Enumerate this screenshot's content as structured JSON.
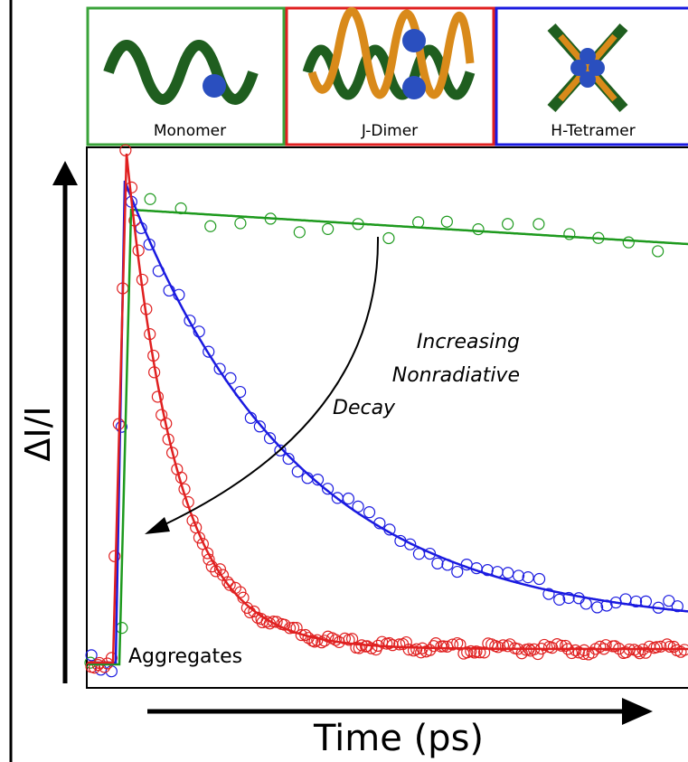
{
  "panels": [
    {
      "label": "Monomer"
    },
    {
      "label": "J-Dimer"
    },
    {
      "label": "H-Tetramer"
    }
  ],
  "plot": {
    "y_label": "ΔI/I",
    "x_label": "Time (ps)",
    "annotation": [
      "Increasing",
      "Nonradiative",
      "Decay"
    ],
    "baseline_label": "Aggregates"
  }
}
